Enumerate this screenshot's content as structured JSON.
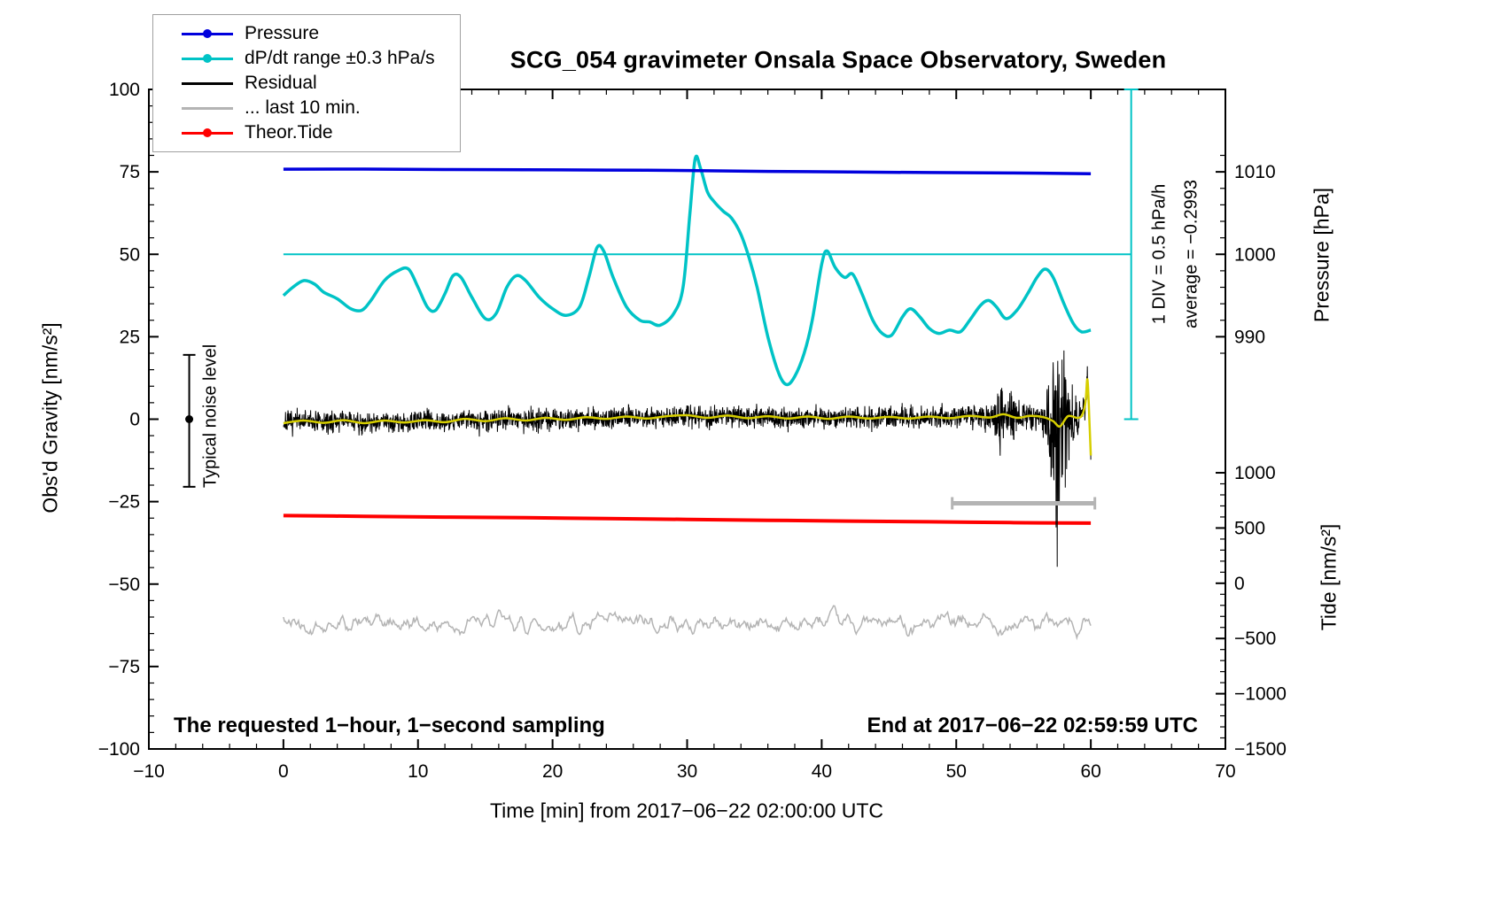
{
  "title": "SCG_054 gravimeter Onsala Space Observatory, Sweden",
  "legend": {
    "items": [
      {
        "label": "Pressure",
        "color": "#0000dd",
        "marker": true
      },
      {
        "label": "dP/dt range ±0.3 hPa/s",
        "color": "#00c3c6",
        "marker": true
      },
      {
        "label": "Residual",
        "color": "#000000",
        "marker": false
      },
      {
        "label": "... last 10 min.",
        "color": "#b4b4b4",
        "marker": false
      },
      {
        "label": "Theor.Tide",
        "color": "#ff0000",
        "marker": true
      }
    ]
  },
  "axes": {
    "x_label": "Time [min] from 2017−06−22 02:00:00 UTC",
    "y_left_label": "Obs'd Gravity [nm/s²]",
    "y_right_pressure_label": "Pressure [hPa]",
    "y_right_tide_label": "Tide [nm/s²]"
  },
  "annotations": {
    "noise_level": "Typical noise level",
    "div_scale": "1 DIV = 0.5 hPa/h",
    "average": "average = −0.2993",
    "sampling": "The requested 1−hour, 1−second sampling",
    "end_time": "End at 2017−06−22 02:59:59 UTC"
  },
  "chart_data": {
    "type": "line",
    "title": "SCG_054 gravimeter Onsala Space Observatory, Sweden",
    "xlabel": "Time [min] from 2017-06-22 02:00:00 UTC",
    "ylabel": "Obs'd Gravity [nm/s2]",
    "x_range": [
      -10,
      70
    ],
    "y_left_range": [
      -100,
      100
    ],
    "x_ticks": [
      -10,
      0,
      10,
      20,
      30,
      40,
      50,
      60,
      70
    ],
    "x_minor_step": 2,
    "y_left_ticks": [
      -100,
      -75,
      -50,
      -25,
      0,
      25,
      50,
      75,
      100
    ],
    "y_minor_step": 5,
    "pressure_ticks": [
      990,
      1000,
      1010
    ],
    "pressure_minor_step": 2,
    "pressure_minor_range": [
      988,
      1012
    ],
    "pressure_axis": {
      "g_at_1000": 50,
      "g_per_hpa": 2.5
    },
    "tide_ticks": [
      -1500,
      -1000,
      -500,
      0,
      500,
      1000
    ],
    "tide_minor_step": 100,
    "tide_minor_range": [
      -1500,
      1000
    ],
    "tide_axis": {
      "g_at_minus1500": -100,
      "g_per_500": 16.75
    },
    "dpdt_axis": {
      "g_at_zero": 50,
      "g_per_hpa_per_h": 50
    },
    "series": {
      "pressure": {
        "name": "Pressure",
        "units": "hPa",
        "color": "#0000dd",
        "width": 3.5,
        "keypoints": [
          [
            0,
            1010.32
          ],
          [
            6,
            1010.34
          ],
          [
            12,
            1010.28
          ],
          [
            18,
            1010.26
          ],
          [
            24,
            1010.22
          ],
          [
            30,
            1010.16
          ],
          [
            36,
            1010.06
          ],
          [
            42,
            1009.98
          ],
          [
            48,
            1009.92
          ],
          [
            54,
            1009.86
          ],
          [
            60,
            1009.78
          ]
        ]
      },
      "dpdt": {
        "name": "dP/dt",
        "units": "hPa/h",
        "color": "#00c3c6",
        "width": 3.5,
        "zero_line": {
          "t0": 0,
          "t1": 63,
          "value": 0
        },
        "scale_bar": {
          "t": 63,
          "g0": 0,
          "g1": 100
        },
        "keypoints": [
          [
            0,
            -0.25
          ],
          [
            0.7,
            -0.2
          ],
          [
            1.5,
            -0.16
          ],
          [
            2.3,
            -0.18
          ],
          [
            3,
            -0.23
          ],
          [
            4,
            -0.27
          ],
          [
            5,
            -0.33
          ],
          [
            5.8,
            -0.34
          ],
          [
            6.5,
            -0.28
          ],
          [
            7.5,
            -0.16
          ],
          [
            8.5,
            -0.1
          ],
          [
            9.3,
            -0.09
          ],
          [
            10,
            -0.2
          ],
          [
            10.7,
            -0.32
          ],
          [
            11.3,
            -0.34
          ],
          [
            12,
            -0.24
          ],
          [
            12.6,
            -0.13
          ],
          [
            13.2,
            -0.14
          ],
          [
            14,
            -0.26
          ],
          [
            15,
            -0.39
          ],
          [
            15.8,
            -0.36
          ],
          [
            16.6,
            -0.2
          ],
          [
            17.3,
            -0.13
          ],
          [
            18,
            -0.16
          ],
          [
            19,
            -0.26
          ],
          [
            20,
            -0.33
          ],
          [
            21,
            -0.37
          ],
          [
            22,
            -0.32
          ],
          [
            22.7,
            -0.14
          ],
          [
            23.3,
            0.04
          ],
          [
            23.8,
            0.02
          ],
          [
            24.5,
            -0.14
          ],
          [
            25.5,
            -0.32
          ],
          [
            26.5,
            -0.4
          ],
          [
            27.2,
            -0.41
          ],
          [
            28,
            -0.43
          ],
          [
            29,
            -0.36
          ],
          [
            29.7,
            -0.2
          ],
          [
            30.2,
            0.24
          ],
          [
            30.6,
            0.58
          ],
          [
            31,
            0.52
          ],
          [
            31.5,
            0.38
          ],
          [
            32,
            0.32
          ],
          [
            32.7,
            0.26
          ],
          [
            33.3,
            0.22
          ],
          [
            34,
            0.12
          ],
          [
            34.6,
            -0.02
          ],
          [
            35.2,
            -0.2
          ],
          [
            36,
            -0.5
          ],
          [
            36.8,
            -0.72
          ],
          [
            37.4,
            -0.79
          ],
          [
            38,
            -0.74
          ],
          [
            38.7,
            -0.6
          ],
          [
            39.3,
            -0.4
          ],
          [
            40,
            -0.06
          ],
          [
            40.4,
            0.02
          ],
          [
            41,
            -0.08
          ],
          [
            41.7,
            -0.14
          ],
          [
            42.3,
            -0.12
          ],
          [
            43,
            -0.24
          ],
          [
            43.8,
            -0.4
          ],
          [
            44.5,
            -0.48
          ],
          [
            45.2,
            -0.49
          ],
          [
            46,
            -0.38
          ],
          [
            46.6,
            -0.33
          ],
          [
            47.3,
            -0.38
          ],
          [
            48,
            -0.45
          ],
          [
            48.7,
            -0.48
          ],
          [
            49.5,
            -0.46
          ],
          [
            50.3,
            -0.47
          ],
          [
            51,
            -0.4
          ],
          [
            51.8,
            -0.31
          ],
          [
            52.4,
            -0.28
          ],
          [
            53,
            -0.32
          ],
          [
            53.7,
            -0.39
          ],
          [
            54.5,
            -0.34
          ],
          [
            55.3,
            -0.24
          ],
          [
            56,
            -0.14
          ],
          [
            56.6,
            -0.09
          ],
          [
            57.2,
            -0.14
          ],
          [
            58,
            -0.3
          ],
          [
            58.7,
            -0.42
          ],
          [
            59.3,
            -0.47
          ],
          [
            60,
            -0.46
          ]
        ]
      },
      "residual": {
        "name": "Residual",
        "units": "nm/s2",
        "color": "#000000",
        "width": 1,
        "dt": 0.02,
        "seed": 7,
        "amp_keypoints": [
          [
            0,
            5.5
          ],
          [
            51.5,
            5.5
          ],
          [
            52,
            8
          ],
          [
            52.8,
            9
          ],
          [
            53.3,
            22
          ],
          [
            53.7,
            14
          ],
          [
            54.3,
            10
          ],
          [
            55,
            9
          ],
          [
            55.7,
            7
          ],
          [
            56.3,
            5.5
          ],
          [
            56.7,
            16
          ],
          [
            57,
            34
          ],
          [
            57.4,
            48
          ],
          [
            57.8,
            50
          ],
          [
            58.1,
            40
          ],
          [
            58.5,
            22
          ],
          [
            58.8,
            10
          ],
          [
            59.2,
            7
          ],
          [
            59.6,
            9
          ],
          [
            60,
            8
          ]
        ]
      },
      "residual_smoothed": {
        "name": "Residual smoothed",
        "units": "nm/s2",
        "color": "#d6ce00",
        "width": 2.5,
        "keypoints": [
          [
            0,
            -1.2
          ],
          [
            1.5,
            -0.4
          ],
          [
            3,
            -1.1
          ],
          [
            4.5,
            -0.3
          ],
          [
            6,
            -1.2
          ],
          [
            7.5,
            -0.4
          ],
          [
            9,
            -1.0
          ],
          [
            10.5,
            -0.3
          ],
          [
            12,
            -0.9
          ],
          [
            13.5,
            0.1
          ],
          [
            15,
            -0.6
          ],
          [
            16.5,
            0.3
          ],
          [
            18,
            -0.4
          ],
          [
            19.5,
            0.4
          ],
          [
            21,
            -0.2
          ],
          [
            22.5,
            0.6
          ],
          [
            24,
            0.1
          ],
          [
            25.5,
            0.8
          ],
          [
            27,
            0.2
          ],
          [
            28.5,
            0.9
          ],
          [
            30,
            1.2
          ],
          [
            31.5,
            0.4
          ],
          [
            33,
            1.1
          ],
          [
            34.5,
            0.3
          ],
          [
            36,
            0.9
          ],
          [
            37.5,
            0.2
          ],
          [
            39,
            0.8
          ],
          [
            40.5,
            0.1
          ],
          [
            42,
            0.8
          ],
          [
            43.5,
            0.2
          ],
          [
            45,
            0.7
          ],
          [
            46.5,
            0.2
          ],
          [
            48,
            0.8
          ],
          [
            49.5,
            0.3
          ],
          [
            51,
            1.0
          ],
          [
            52.5,
            0.5
          ],
          [
            53.5,
            1.5
          ],
          [
            54.5,
            0.4
          ],
          [
            55.5,
            1.0
          ],
          [
            56.5,
            0.6
          ],
          [
            57.2,
            -0.6
          ],
          [
            57.7,
            -2.2
          ],
          [
            58.3,
            0.9
          ],
          [
            59,
            0.4
          ],
          [
            59.35,
            1.2
          ],
          [
            59.6,
            5
          ],
          [
            59.75,
            12
          ],
          [
            59.9,
            -1
          ],
          [
            60,
            -11
          ]
        ]
      },
      "last10min": {
        "name": "... last 10 min.",
        "units": "nm/s2 (offset trace)",
        "color": "#b4b4b4",
        "width": 1.5,
        "mean_g": -62,
        "dt": 0.08,
        "smooth": 3,
        "scale": 7,
        "seed": 42,
        "span_bar": {
          "t0": 49.7,
          "t1": 60.3,
          "g": -25.5
        }
      },
      "tide": {
        "name": "Theor.Tide",
        "units": "nm/s2",
        "color": "#ff0000",
        "width": 4,
        "keypoints": [
          [
            0,
            612
          ],
          [
            6,
            606
          ],
          [
            12,
            599
          ],
          [
            18,
            593
          ],
          [
            24,
            586
          ],
          [
            30,
            578
          ],
          [
            36,
            570
          ],
          [
            42,
            563
          ],
          [
            48,
            556
          ],
          [
            54,
            549
          ],
          [
            60,
            544
          ]
        ]
      },
      "noise_level_bar": {
        "t": -7,
        "g0": -20.5,
        "g1": 19.5,
        "g_dot": 0
      }
    }
  }
}
